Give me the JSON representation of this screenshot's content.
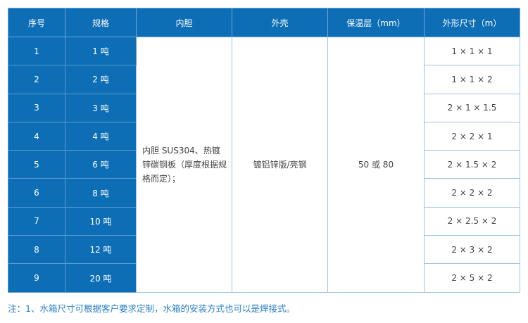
{
  "headers": [
    "序号",
    "规格",
    "内胆",
    "外壳",
    "保温层（mm）",
    "外形尺寸（m）"
  ],
  "rows": [
    {
      "no": "1",
      "spec": "1 吨",
      "size": "1 × 1 × 1"
    },
    {
      "no": "2",
      "spec": "2 吨",
      "size": "1 × 1 × 2"
    },
    {
      "no": "3",
      "spec": "3 吨",
      "size": "2 × 1 × 1.5"
    },
    {
      "no": "4",
      "spec": "4 吨",
      "size": "2 × 2 × 1"
    },
    {
      "no": "5",
      "spec": "6 吨",
      "size": "2 × 1.5 × 2"
    },
    {
      "no": "6",
      "spec": "8 吨",
      "size": "2 × 2 × 2"
    },
    {
      "no": "7",
      "spec": "10 吨",
      "size": "2 × 2.5 × 2"
    },
    {
      "no": "8",
      "spec": "12 吨",
      "size": "2 × 3 × 2"
    },
    {
      "no": "9",
      "spec": "20 吨",
      "size": "2 × 5 × 2"
    }
  ],
  "merged": {
    "inner": "内胆 SUS304、热镀锌碳钢板（厚度根据规格而定）；",
    "shell": "镀铝锌版/亮钢",
    "insulation": "50 或 80"
  },
  "note": "注：1、水箱尺寸可根据客户要求定制，水箱的安装方式也可以是焊接式。",
  "colors": {
    "header": "#0d6eb6",
    "note": "#2a7fc1"
  }
}
